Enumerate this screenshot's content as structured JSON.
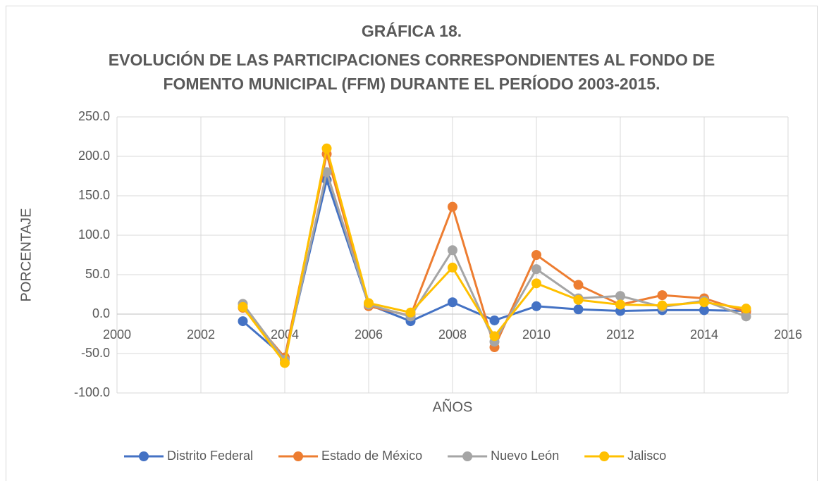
{
  "chart_data": {
    "type": "line",
    "title": [
      "GRÁFICA 18.",
      "EVOLUCIÓN DE LAS PARTICIPACIONES CORRESPONDIENTES AL FONDO DE",
      "FOMENTO MUNICIPAL (FFM) DURANTE EL PERÍODO 2003-2015."
    ],
    "x_label": "AÑOS",
    "y_label": "PORCENTAJE",
    "x": [
      2003,
      2004,
      2005,
      2006,
      2007,
      2008,
      2009,
      2010,
      2011,
      2012,
      2013,
      2014,
      2015
    ],
    "series": [
      {
        "name": "Distrito Federal",
        "color": "#4472c4",
        "values": [
          -9,
          -55,
          170,
          12,
          -9,
          15,
          -8,
          10,
          6,
          4,
          5,
          5,
          4
        ]
      },
      {
        "name": "Estado de México",
        "color": "#ed7d31",
        "values": [
          8,
          -55,
          203,
          10,
          -2,
          136,
          -42,
          75,
          37,
          12,
          24,
          20,
          3
        ]
      },
      {
        "name": "Nuevo León",
        "color": "#a5a5a5",
        "values": [
          13,
          -58,
          180,
          12,
          -3,
          81,
          -35,
          57,
          20,
          23,
          9,
          17,
          -3
        ]
      },
      {
        "name": "Jalisco",
        "color": "#ffc000",
        "values": [
          9,
          -62,
          210,
          14,
          2,
          59,
          -28,
          39,
          18,
          12,
          11,
          15,
          7
        ]
      }
    ],
    "xlim": [
      2000,
      2016
    ],
    "xticks": [
      2000,
      2002,
      2004,
      2006,
      2008,
      2010,
      2012,
      2014,
      2016
    ],
    "ylim": [
      -100,
      250
    ],
    "yticks": [
      {
        "value": -100,
        "label": "-100.0"
      },
      {
        "value": -50,
        "label": "-50.0"
      },
      {
        "value": 0,
        "label": "0.0"
      },
      {
        "value": 50,
        "label": "50.0"
      },
      {
        "value": 100,
        "label": "100.0"
      },
      {
        "value": 150,
        "label": "150.0"
      },
      {
        "value": 200,
        "label": "200.0"
      },
      {
        "value": 250,
        "label": "250.0"
      }
    ],
    "grid": true,
    "legend": "bottom"
  }
}
